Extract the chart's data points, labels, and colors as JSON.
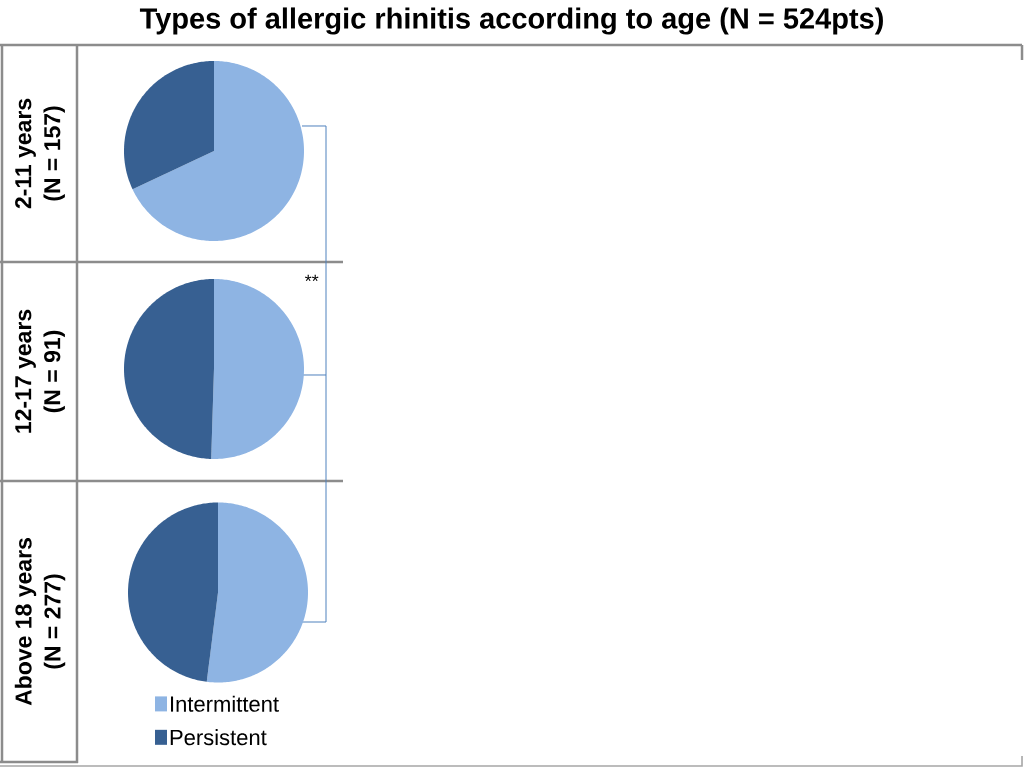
{
  "chart_data": [
    {
      "type": "pie",
      "title": "Types of allergic rhinitis according to age (N = 524pts)",
      "ylabel": "2-11 years (N = 157)",
      "values": [
        68,
        32
      ],
      "colors": [
        "#8eb4e3",
        "#376092"
      ],
      "legend": false
    },
    {
      "type": "pie",
      "ylabel": "12-17 years (N = 91)",
      "values": [
        50.5,
        49.5
      ],
      "colors": [
        "#8eb4e3",
        "#376092"
      ],
      "annotations": [
        "**"
      ],
      "legend": false
    },
    {
      "type": "pie",
      "ylabel": "Above 18 years (N = 277)",
      "categories": [
        "Intermittent",
        "Persistent"
      ],
      "values": [
        52,
        48
      ],
      "colors": [
        "#8eb4e3",
        "#376092"
      ],
      "legend": "bottom"
    }
  ]
}
